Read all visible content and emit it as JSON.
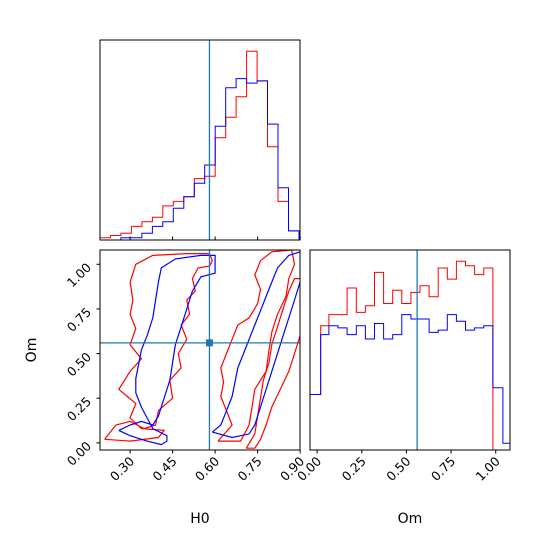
{
  "chart_data": {
    "type": "corner",
    "parameters": [
      "H0",
      "Om"
    ],
    "truth": {
      "H0": 0.58,
      "Om": 0.56
    },
    "colors": {
      "run_a": "#ff0000",
      "run_b": "#0000ff",
      "truth": "#1f77b4"
    },
    "grid": false,
    "H0": {
      "range": [
        0.1938,
        0.8995
      ],
      "ticks": [
        "0.30",
        "0.45",
        "0.60",
        "0.75",
        "0.90"
      ],
      "tick_values": [
        0.3,
        0.45,
        0.6,
        0.75,
        0.9
      ],
      "bins": [
        0.1938,
        0.2308,
        0.2677,
        0.3047,
        0.3416,
        0.3786,
        0.4155,
        0.4525,
        0.4894,
        0.5264,
        0.5633,
        0.6003,
        0.6372,
        0.6742,
        0.7111,
        0.7481,
        0.785,
        0.822,
        0.8589,
        0.8959
      ],
      "hist_red": [
        1,
        2,
        3,
        6,
        8,
        10,
        15,
        17,
        19,
        27,
        28,
        45,
        54,
        63,
        83,
        70,
        41,
        17,
        4
      ],
      "hist_blue": [
        0,
        0,
        1,
        1,
        3,
        6,
        8,
        14,
        19,
        25,
        33,
        50,
        67,
        71,
        69,
        70,
        51,
        23,
        4
      ]
    },
    "Om": {
      "range": [
        -0.04,
        1.08
      ],
      "ticks": [
        "0.00",
        "0.25",
        "0.50",
        "0.75",
        "1.00"
      ],
      "tick_values": [
        0.0,
        0.25,
        0.5,
        0.75,
        1.0
      ],
      "bins": [
        -0.04,
        0.02,
        0.066,
        0.117,
        0.168,
        0.219,
        0.27,
        0.321,
        0.372,
        0.423,
        0.474,
        0.525,
        0.576,
        0.627,
        0.678,
        0.729,
        0.78,
        0.831,
        0.882,
        0.933,
        0.984,
        1.04,
        1.08
      ],
      "hist_red": [
        25,
        56,
        61,
        61,
        73,
        62,
        65,
        80,
        66,
        72,
        66,
        71,
        74,
        69,
        82,
        77,
        85,
        83,
        79,
        82,
        0,
        0
      ],
      "hist_blue": [
        25,
        52,
        56,
        55,
        52,
        56,
        50,
        57,
        50,
        52,
        61,
        59,
        59,
        53,
        54,
        61,
        58,
        54,
        55,
        56,
        28,
        3
      ]
    },
    "contours": {
      "red": [
        [
          [
            0.21,
            0.02
          ],
          [
            0.3,
            0.01
          ],
          [
            0.4,
            0.03
          ],
          [
            0.42,
            0.07
          ],
          [
            0.34,
            0.08
          ],
          [
            0.3,
            0.14
          ],
          [
            0.32,
            0.22
          ],
          [
            0.26,
            0.3
          ],
          [
            0.3,
            0.4
          ],
          [
            0.34,
            0.47
          ],
          [
            0.3,
            0.55
          ],
          [
            0.32,
            0.64
          ],
          [
            0.3,
            0.72
          ],
          [
            0.31,
            0.8
          ],
          [
            0.3,
            0.9
          ],
          [
            0.32,
            1.0
          ],
          [
            0.38,
            1.05
          ],
          [
            0.5,
            1.06
          ],
          [
            0.58,
            1.06
          ],
          [
            0.59,
            1.02
          ],
          [
            0.58,
            0.99
          ],
          [
            0.54,
            0.98
          ],
          [
            0.52,
            0.92
          ],
          [
            0.53,
            0.85
          ],
          [
            0.5,
            0.8
          ],
          [
            0.51,
            0.72
          ],
          [
            0.48,
            0.66
          ],
          [
            0.5,
            0.58
          ],
          [
            0.47,
            0.5
          ],
          [
            0.48,
            0.42
          ],
          [
            0.44,
            0.35
          ],
          [
            0.45,
            0.25
          ],
          [
            0.4,
            0.18
          ],
          [
            0.39,
            0.1
          ],
          [
            0.35,
            0.08
          ],
          [
            0.3,
            0.12
          ],
          [
            0.25,
            0.1
          ],
          [
            0.21,
            0.02
          ]
        ],
        [
          [
            0.61,
            0.01
          ],
          [
            0.66,
            0.1
          ],
          [
            0.64,
            0.18
          ],
          [
            0.62,
            0.26
          ],
          [
            0.63,
            0.34
          ],
          [
            0.62,
            0.42
          ],
          [
            0.64,
            0.5
          ],
          [
            0.66,
            0.58
          ],
          [
            0.68,
            0.66
          ],
          [
            0.72,
            0.7
          ],
          [
            0.75,
            0.78
          ],
          [
            0.76,
            0.86
          ],
          [
            0.74,
            0.94
          ],
          [
            0.76,
            1.02
          ],
          [
            0.8,
            1.07
          ],
          [
            0.87,
            1.08
          ],
          [
            0.88,
            1.0
          ],
          [
            0.86,
            0.92
          ],
          [
            0.85,
            0.82
          ],
          [
            0.82,
            0.72
          ],
          [
            0.8,
            0.62
          ],
          [
            0.79,
            0.52
          ],
          [
            0.78,
            0.4
          ],
          [
            0.74,
            0.3
          ],
          [
            0.73,
            0.2
          ],
          [
            0.72,
            0.1
          ],
          [
            0.69,
            0.01
          ],
          [
            0.61,
            0.01
          ]
        ],
        [
          [
            0.71,
            -0.03
          ],
          [
            0.74,
            0.05
          ],
          [
            0.75,
            0.15
          ],
          [
            0.76,
            0.25
          ],
          [
            0.77,
            0.35
          ],
          [
            0.79,
            0.45
          ],
          [
            0.8,
            0.55
          ],
          [
            0.82,
            0.65
          ],
          [
            0.84,
            0.75
          ],
          [
            0.86,
            0.85
          ],
          [
            0.88,
            0.92
          ],
          [
            0.9,
            0.92
          ],
          [
            0.9,
            0.6
          ],
          [
            0.88,
            0.5
          ],
          [
            0.86,
            0.4
          ],
          [
            0.83,
            0.3
          ],
          [
            0.8,
            0.2
          ],
          [
            0.78,
            0.1
          ],
          [
            0.76,
            0.02
          ],
          [
            0.74,
            -0.03
          ],
          [
            0.71,
            -0.03
          ]
        ]
      ],
      "blue": [
        [
          [
            0.26,
            0.07
          ],
          [
            0.3,
            0.04
          ],
          [
            0.36,
            0.01
          ],
          [
            0.41,
            -0.01
          ],
          [
            0.43,
            0.01
          ],
          [
            0.43,
            0.04
          ],
          [
            0.38,
            0.08
          ],
          [
            0.36,
            0.14
          ],
          [
            0.34,
            0.2
          ],
          [
            0.32,
            0.28
          ],
          [
            0.32,
            0.36
          ],
          [
            0.33,
            0.44
          ],
          [
            0.34,
            0.52
          ],
          [
            0.36,
            0.6
          ],
          [
            0.38,
            0.7
          ],
          [
            0.39,
            0.8
          ],
          [
            0.4,
            0.9
          ],
          [
            0.41,
            0.98
          ],
          [
            0.46,
            1.03
          ],
          [
            0.55,
            1.05
          ],
          [
            0.6,
            1.05
          ],
          [
            0.6,
            0.95
          ],
          [
            0.55,
            0.93
          ],
          [
            0.52,
            0.85
          ],
          [
            0.5,
            0.75
          ],
          [
            0.48,
            0.65
          ],
          [
            0.46,
            0.55
          ],
          [
            0.45,
            0.45
          ],
          [
            0.44,
            0.35
          ],
          [
            0.42,
            0.25
          ],
          [
            0.4,
            0.15
          ],
          [
            0.38,
            0.1
          ],
          [
            0.34,
            0.12
          ],
          [
            0.3,
            0.1
          ],
          [
            0.26,
            0.07
          ]
        ],
        [
          [
            0.59,
            0.06
          ],
          [
            0.62,
            0.1
          ],
          [
            0.64,
            0.18
          ],
          [
            0.66,
            0.26
          ],
          [
            0.67,
            0.34
          ],
          [
            0.68,
            0.42
          ],
          [
            0.7,
            0.5
          ],
          [
            0.72,
            0.58
          ],
          [
            0.74,
            0.66
          ],
          [
            0.76,
            0.74
          ],
          [
            0.78,
            0.82
          ],
          [
            0.8,
            0.9
          ],
          [
            0.82,
            0.98
          ],
          [
            0.86,
            1.05
          ],
          [
            0.9,
            1.07
          ],
          [
            0.9,
            0.9
          ],
          [
            0.88,
            0.8
          ],
          [
            0.86,
            0.7
          ],
          [
            0.84,
            0.6
          ],
          [
            0.82,
            0.5
          ],
          [
            0.8,
            0.4
          ],
          [
            0.78,
            0.3
          ],
          [
            0.76,
            0.2
          ],
          [
            0.74,
            0.1
          ],
          [
            0.72,
            0.05
          ],
          [
            0.66,
            0.03
          ],
          [
            0.59,
            0.06
          ]
        ]
      ]
    }
  }
}
